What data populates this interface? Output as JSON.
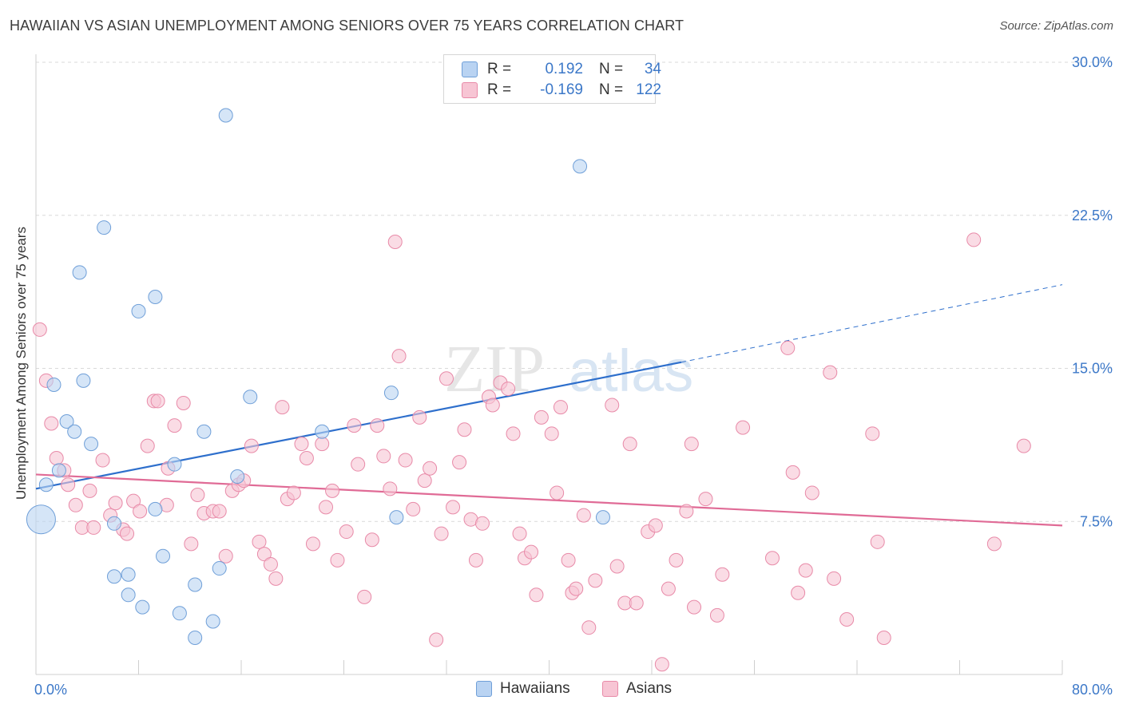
{
  "title": "HAWAIIAN VS ASIAN UNEMPLOYMENT AMONG SENIORS OVER 75 YEARS CORRELATION CHART",
  "source": "Source: ZipAtlas.com",
  "watermark": {
    "zip": "ZIP",
    "atlas": "atlas"
  },
  "legend": {
    "rows": [
      {
        "r_label": "R =",
        "r_value": "0.192",
        "n_label": "N =",
        "n_value": "34"
      },
      {
        "r_label": "R =",
        "r_value": "-0.169",
        "n_label": "N =",
        "n_value": "122"
      }
    ]
  },
  "colors": {
    "hawaiians_fill": "#b9d3f2",
    "hawaiians_stroke": "#6f9fd8",
    "hawaiians_line": "#2e6fcc",
    "asians_fill": "#f7c5d4",
    "asians_stroke": "#e88aa8",
    "asians_line": "#e06b96",
    "tick_label": "#3c78c8",
    "grid": "#d9d9d9"
  },
  "chart_data": {
    "type": "scatter",
    "title": "HAWAIIAN VS ASIAN UNEMPLOYMENT AMONG SENIORS OVER 75 YEARS CORRELATION CHART",
    "xlabel": "",
    "ylabel": "Unemployment Among Seniors over 75 years",
    "xlim": [
      0,
      80
    ],
    "ylim": [
      0,
      30
    ],
    "x_tick_labels": [
      "0.0%",
      "80.0%"
    ],
    "y_ticks": [
      7.5,
      15.0,
      22.5,
      30.0
    ],
    "y_tick_labels": [
      "7.5%",
      "15.0%",
      "22.5%",
      "30.0%"
    ],
    "grid": true,
    "legend_position": "bottom-center",
    "series": [
      {
        "name": "Hawaiians",
        "r": 0.192,
        "n": 34,
        "trend": {
          "x": [
            0,
            50.3
          ],
          "y": [
            9.1,
            15.3
          ],
          "dashed_to": [
            80,
            19.1
          ]
        },
        "points": [
          [
            0.4,
            7.6
          ],
          [
            0.8,
            9.3
          ],
          [
            1.4,
            14.2
          ],
          [
            1.8,
            10.0
          ],
          [
            2.4,
            12.4
          ],
          [
            3.0,
            11.9
          ],
          [
            3.4,
            19.7
          ],
          [
            3.7,
            14.4
          ],
          [
            4.3,
            11.3
          ],
          [
            5.3,
            21.9
          ],
          [
            6.1,
            4.8
          ],
          [
            6.1,
            7.4
          ],
          [
            7.2,
            4.9
          ],
          [
            7.2,
            3.9
          ],
          [
            8.0,
            17.8
          ],
          [
            8.3,
            3.3
          ],
          [
            9.3,
            18.5
          ],
          [
            9.3,
            8.1
          ],
          [
            9.9,
            5.8
          ],
          [
            10.8,
            10.3
          ],
          [
            11.2,
            3.0
          ],
          [
            12.4,
            4.4
          ],
          [
            12.4,
            1.8
          ],
          [
            13.1,
            11.9
          ],
          [
            13.8,
            2.6
          ],
          [
            14.3,
            5.2
          ],
          [
            14.8,
            27.4
          ],
          [
            15.7,
            9.7
          ],
          [
            16.7,
            13.6
          ],
          [
            22.3,
            11.9
          ],
          [
            27.7,
            13.8
          ],
          [
            28.1,
            7.7
          ],
          [
            42.4,
            24.9
          ],
          [
            44.2,
            7.7
          ]
        ]
      },
      {
        "name": "Asians",
        "r": -0.169,
        "n": 122,
        "trend": {
          "x": [
            0,
            80
          ],
          "y": [
            9.8,
            7.3
          ]
        },
        "points": [
          [
            0.3,
            16.9
          ],
          [
            0.8,
            14.4
          ],
          [
            1.2,
            12.3
          ],
          [
            1.6,
            10.6
          ],
          [
            2.2,
            10.0
          ],
          [
            2.5,
            9.3
          ],
          [
            3.1,
            8.3
          ],
          [
            3.6,
            7.2
          ],
          [
            4.2,
            9.0
          ],
          [
            4.5,
            7.2
          ],
          [
            5.2,
            10.5
          ],
          [
            5.8,
            7.8
          ],
          [
            6.2,
            8.4
          ],
          [
            6.8,
            7.1
          ],
          [
            7.1,
            6.9
          ],
          [
            7.6,
            8.5
          ],
          [
            8.1,
            8.0
          ],
          [
            8.7,
            11.2
          ],
          [
            9.2,
            13.4
          ],
          [
            9.5,
            13.4
          ],
          [
            10.2,
            8.3
          ],
          [
            10.3,
            10.1
          ],
          [
            10.8,
            12.2
          ],
          [
            11.5,
            13.3
          ],
          [
            12.1,
            6.4
          ],
          [
            12.6,
            8.8
          ],
          [
            13.1,
            7.9
          ],
          [
            13.8,
            8.0
          ],
          [
            14.3,
            8.0
          ],
          [
            14.8,
            5.8
          ],
          [
            15.3,
            9.0
          ],
          [
            15.8,
            9.3
          ],
          [
            16.2,
            9.5
          ],
          [
            16.8,
            11.2
          ],
          [
            17.4,
            6.5
          ],
          [
            17.8,
            5.9
          ],
          [
            18.3,
            5.4
          ],
          [
            18.7,
            4.7
          ],
          [
            19.2,
            13.1
          ],
          [
            19.6,
            8.6
          ],
          [
            20.1,
            8.9
          ],
          [
            20.7,
            11.3
          ],
          [
            21.1,
            10.6
          ],
          [
            21.6,
            6.4
          ],
          [
            22.3,
            11.3
          ],
          [
            22.6,
            8.2
          ],
          [
            23.1,
            9.0
          ],
          [
            23.5,
            5.6
          ],
          [
            24.2,
            7.0
          ],
          [
            24.8,
            12.2
          ],
          [
            25.1,
            10.3
          ],
          [
            25.6,
            3.8
          ],
          [
            26.2,
            6.6
          ],
          [
            26.6,
            12.2
          ],
          [
            27.1,
            10.7
          ],
          [
            27.6,
            9.1
          ],
          [
            28.0,
            21.2
          ],
          [
            28.3,
            15.6
          ],
          [
            28.8,
            10.5
          ],
          [
            29.4,
            8.1
          ],
          [
            29.9,
            12.6
          ],
          [
            30.3,
            9.5
          ],
          [
            30.7,
            10.1
          ],
          [
            31.2,
            1.7
          ],
          [
            31.6,
            6.9
          ],
          [
            32.0,
            14.5
          ],
          [
            32.5,
            8.2
          ],
          [
            33.0,
            10.4
          ],
          [
            33.4,
            12.0
          ],
          [
            33.9,
            7.6
          ],
          [
            34.3,
            5.6
          ],
          [
            34.8,
            7.4
          ],
          [
            35.3,
            13.6
          ],
          [
            35.6,
            13.2
          ],
          [
            36.2,
            14.3
          ],
          [
            36.8,
            14.0
          ],
          [
            37.2,
            11.8
          ],
          [
            37.7,
            6.9
          ],
          [
            38.1,
            5.7
          ],
          [
            38.6,
            6.0
          ],
          [
            39.0,
            3.9
          ],
          [
            39.4,
            12.6
          ],
          [
            40.2,
            11.8
          ],
          [
            40.6,
            8.9
          ],
          [
            40.9,
            13.1
          ],
          [
            41.5,
            5.6
          ],
          [
            41.8,
            4.0
          ],
          [
            42.1,
            4.2
          ],
          [
            42.7,
            7.8
          ],
          [
            43.1,
            2.3
          ],
          [
            43.6,
            4.6
          ],
          [
            44.9,
            13.2
          ],
          [
            45.3,
            5.3
          ],
          [
            45.9,
            3.5
          ],
          [
            46.3,
            11.3
          ],
          [
            46.8,
            3.5
          ],
          [
            47.7,
            7.0
          ],
          [
            48.3,
            7.3
          ],
          [
            48.8,
            0.5
          ],
          [
            49.3,
            4.2
          ],
          [
            49.9,
            5.6
          ],
          [
            50.7,
            8.0
          ],
          [
            51.1,
            11.3
          ],
          [
            51.3,
            3.3
          ],
          [
            52.2,
            8.6
          ],
          [
            53.1,
            2.9
          ],
          [
            53.5,
            4.9
          ],
          [
            55.1,
            12.1
          ],
          [
            57.4,
            5.7
          ],
          [
            58.6,
            16.0
          ],
          [
            59.0,
            9.9
          ],
          [
            59.4,
            4.0
          ],
          [
            60.0,
            5.1
          ],
          [
            60.5,
            8.9
          ],
          [
            61.9,
            14.8
          ],
          [
            62.2,
            4.7
          ],
          [
            63.2,
            2.7
          ],
          [
            65.2,
            11.8
          ],
          [
            65.6,
            6.5
          ],
          [
            66.1,
            1.8
          ],
          [
            73.1,
            21.3
          ],
          [
            74.7,
            6.4
          ],
          [
            77.0,
            11.2
          ]
        ]
      }
    ]
  },
  "bottom_legend": [
    "Hawaiians",
    "Asians"
  ]
}
